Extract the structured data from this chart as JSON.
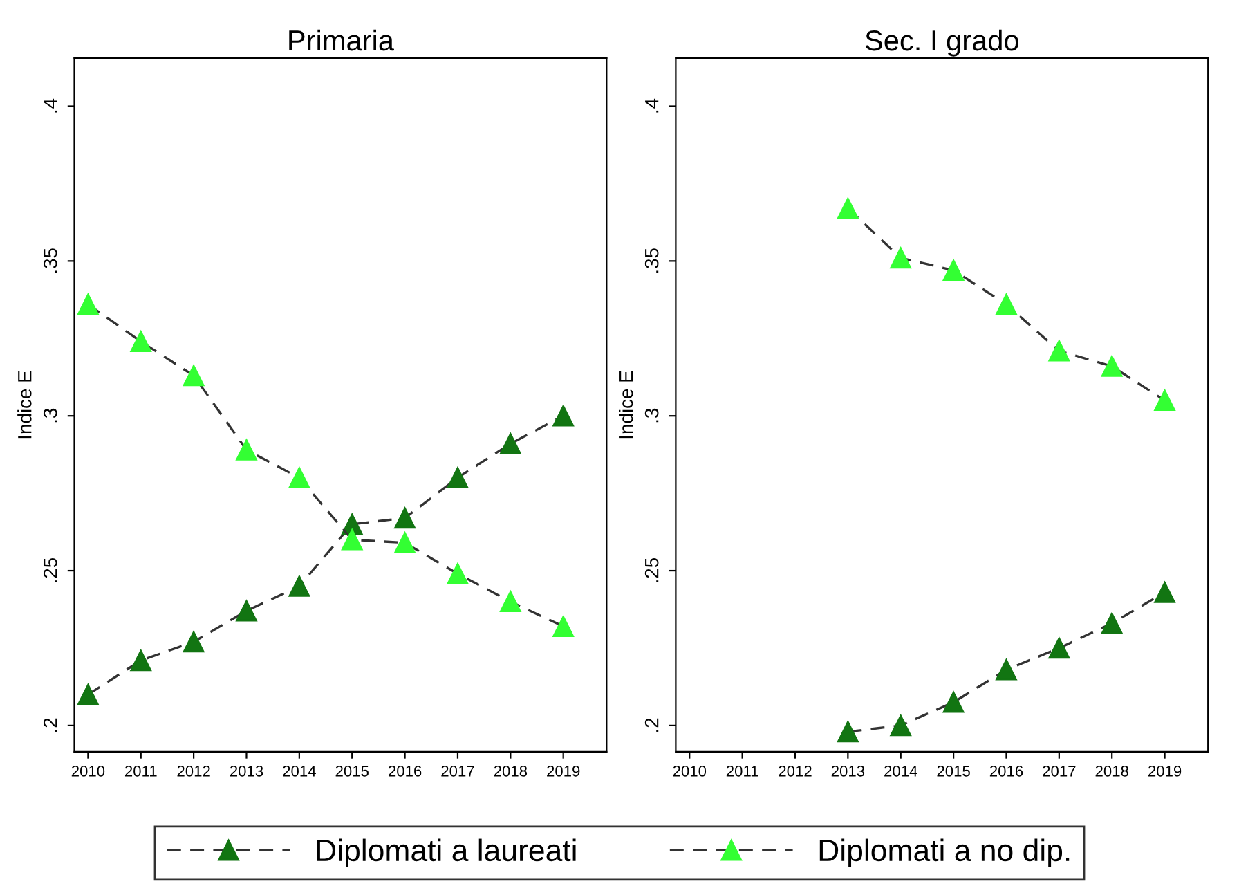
{
  "chart_data": [
    {
      "type": "line",
      "title": "Primaria",
      "ylabel": "Indice E",
      "xlim": [
        2009.74,
        2019.82
      ],
      "xticks": [
        2010,
        2011,
        2012,
        2013,
        2014,
        2015,
        2016,
        2017,
        2018,
        2019
      ],
      "ylim": [
        0.1915,
        0.4155
      ],
      "yticks": [
        {
          "value": 0.2,
          "label": ".2"
        },
        {
          "value": 0.25,
          "label": ".25"
        },
        {
          "value": 0.3,
          "label": ".3"
        },
        {
          "value": 0.35,
          "label": ".35"
        },
        {
          "value": 0.4,
          "label": ".4"
        }
      ],
      "x": [
        2010,
        2011,
        2012,
        2013,
        2014,
        2015,
        2016,
        2017,
        2018,
        2019
      ],
      "marker": "triangle",
      "line_style": "dashed",
      "legend": "bottom",
      "series": [
        {
          "name": "Diplomati a laureati",
          "color": "#127512",
          "values": [
            0.21,
            0.221,
            0.227,
            0.237,
            0.245,
            0.265,
            0.267,
            0.28,
            0.291,
            0.3
          ]
        },
        {
          "name": "Diplomati a no dip.",
          "color": "#33ff33",
          "values": [
            0.336,
            0.324,
            0.313,
            0.289,
            0.28,
            0.26,
            0.259,
            0.249,
            0.24,
            0.232
          ]
        }
      ]
    },
    {
      "type": "line",
      "title": "Sec. I grado",
      "ylabel": "Indice E",
      "xlim": [
        2009.74,
        2019.82
      ],
      "xticks": [
        2010,
        2011,
        2012,
        2013,
        2014,
        2015,
        2016,
        2017,
        2018,
        2019
      ],
      "ylim": [
        0.1915,
        0.4155
      ],
      "yticks": [
        {
          "value": 0.2,
          "label": ".2"
        },
        {
          "value": 0.25,
          "label": ".25"
        },
        {
          "value": 0.3,
          "label": ".3"
        },
        {
          "value": 0.35,
          "label": ".35"
        },
        {
          "value": 0.4,
          "label": ".4"
        }
      ],
      "x": [
        2013,
        2014,
        2015,
        2016,
        2017,
        2018,
        2019
      ],
      "marker": "triangle",
      "line_style": "dashed",
      "series": [
        {
          "color": "#127512",
          "values": [
            0.198,
            0.2,
            0.2075,
            0.218,
            0.225,
            0.233,
            0.243
          ]
        },
        {
          "color": "#33ff33",
          "values": [
            0.367,
            0.351,
            0.347,
            0.336,
            0.321,
            0.316,
            0.305
          ]
        }
      ]
    }
  ]
}
